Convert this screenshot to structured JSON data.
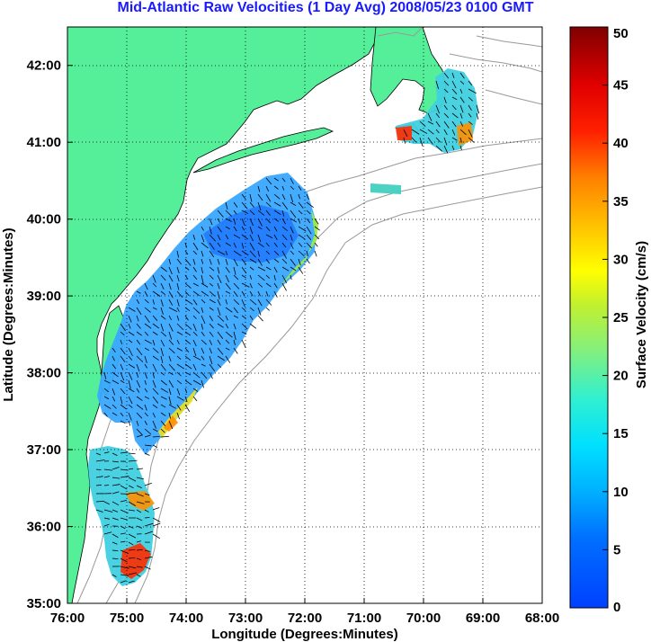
{
  "title": "Mid-Atlantic Raw Velocities (1 Day Avg) 2008/05/23 0100 GMT",
  "xlabel": "Longitude (Degrees:Minutes)",
  "ylabel": "Latitude (Degrees:Minutes)",
  "colorbar_label": "Surface Velocity (cm/s)",
  "lon_ticks": [
    "76:00",
    "75:00",
    "74:00",
    "73:00",
    "72:00",
    "71:00",
    "70:00",
    "69:00",
    "68:00"
  ],
  "lat_ticks": [
    "42:00",
    "41:00",
    "40:00",
    "39:00",
    "38:00",
    "37:00",
    "36:00",
    "35:00"
  ],
  "colorbar_ticks": [
    "50",
    "45",
    "40",
    "35",
    "30",
    "25",
    "20",
    "15",
    "10",
    "5",
    "0"
  ],
  "colors": {
    "land": "#55ee99",
    "title": "#1a1aff",
    "bathymetry": "#999999"
  },
  "map_extent": {
    "lon_min": -76,
    "lon_max": -68,
    "lat_min": 35,
    "lat_max": 42.5
  },
  "colorbar_range": [
    0,
    50
  ],
  "grid": "dotted"
}
